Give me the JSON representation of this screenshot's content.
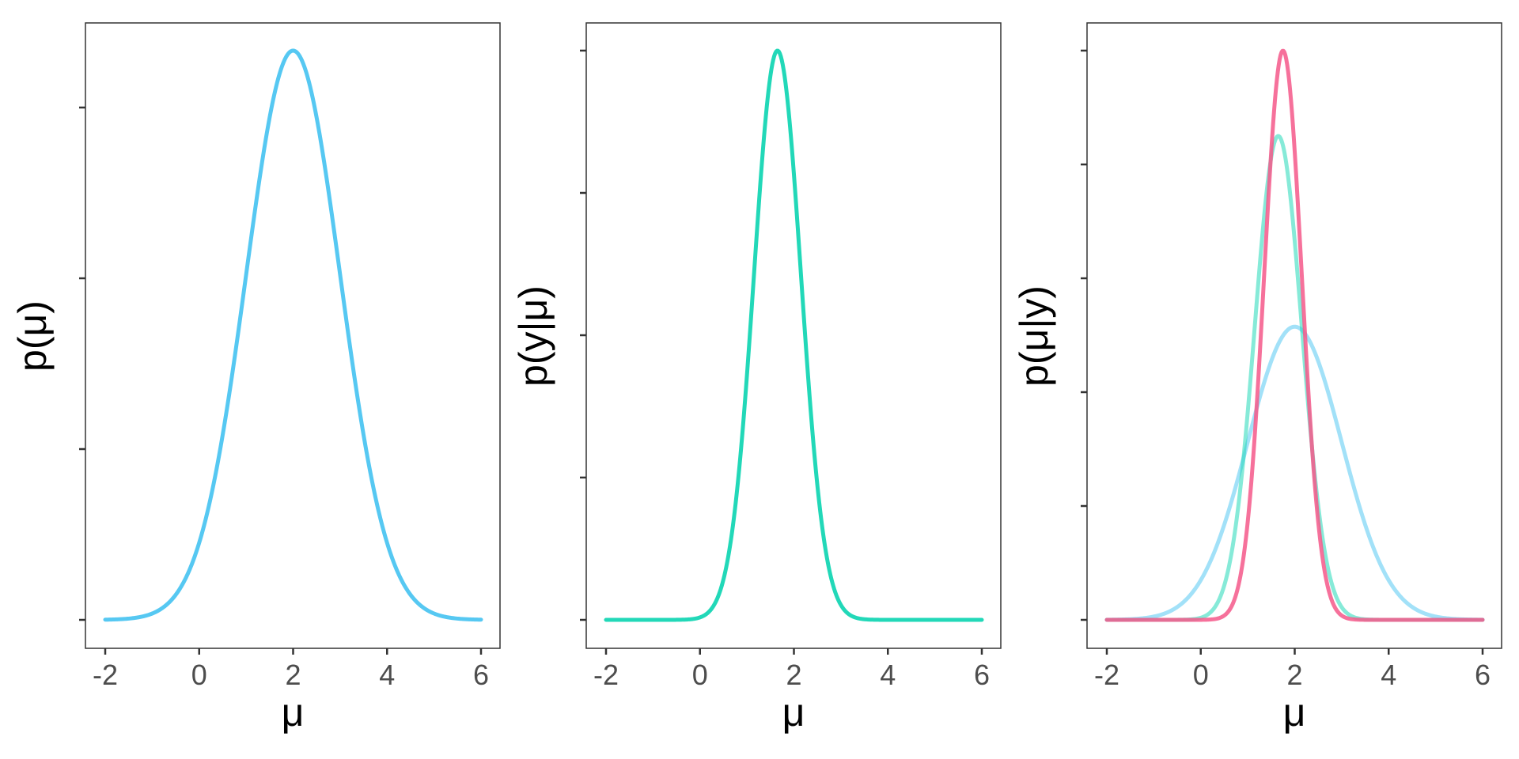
{
  "chart_data": [
    {
      "type": "line",
      "xlabel": "μ",
      "ylabel": "p(μ)",
      "xlim": [
        -2,
        6
      ],
      "ylim": [
        0,
        1.05
      ],
      "x_ticks": [
        -2,
        0,
        2,
        4,
        6
      ],
      "x_tick_labels": [
        "-2",
        "0",
        "2",
        "4",
        "6"
      ],
      "y_ticks": [
        0,
        0.3,
        0.6,
        0.9
      ],
      "y_tick_labels": [
        "",
        "",
        "",
        ""
      ],
      "grid": false,
      "legend": "none",
      "series": [
        {
          "color": "#56c8f2",
          "opacity": 1.0,
          "mean": 2.0,
          "sd": 1.0,
          "peak": 1.0
        }
      ]
    },
    {
      "type": "line",
      "xlabel": "μ",
      "ylabel": "p(y|μ)",
      "xlim": [
        -2,
        6
      ],
      "ylim": [
        0,
        1.05
      ],
      "x_ticks": [
        -2,
        0,
        2,
        4,
        6
      ],
      "x_tick_labels": [
        "-2",
        "0",
        "2",
        "4",
        "6"
      ],
      "y_ticks": [
        0,
        0.25,
        0.5,
        0.75,
        1.0
      ],
      "y_tick_labels": [
        "",
        "",
        "",
        "",
        ""
      ],
      "grid": false,
      "legend": "none",
      "series": [
        {
          "color": "#22d8b8",
          "opacity": 1.0,
          "mean": 1.65,
          "sd": 0.5,
          "peak": 1.0
        }
      ]
    },
    {
      "type": "line",
      "xlabel": "μ",
      "ylabel": "p(μ|y)",
      "xlim": [
        -2,
        6
      ],
      "ylim": [
        0,
        1.05
      ],
      "x_ticks": [
        -2,
        0,
        2,
        4,
        6
      ],
      "x_tick_labels": [
        "-2",
        "0",
        "2",
        "4",
        "6"
      ],
      "y_ticks": [
        0,
        0.2,
        0.4,
        0.6,
        0.8,
        1.0
      ],
      "y_tick_labels": [
        "",
        "",
        "",
        "",
        "",
        ""
      ],
      "grid": false,
      "legend": "none",
      "series": [
        {
          "color": "#56c8f2",
          "opacity": 0.55,
          "mean": 2.0,
          "sd": 1.0,
          "peak": 0.515
        },
        {
          "color": "#22d8b8",
          "opacity": 0.55,
          "mean": 1.65,
          "sd": 0.5,
          "peak": 0.85
        },
        {
          "color": "#f4588a",
          "opacity": 0.85,
          "mean": 1.75,
          "sd": 0.4,
          "peak": 1.0
        }
      ]
    }
  ]
}
